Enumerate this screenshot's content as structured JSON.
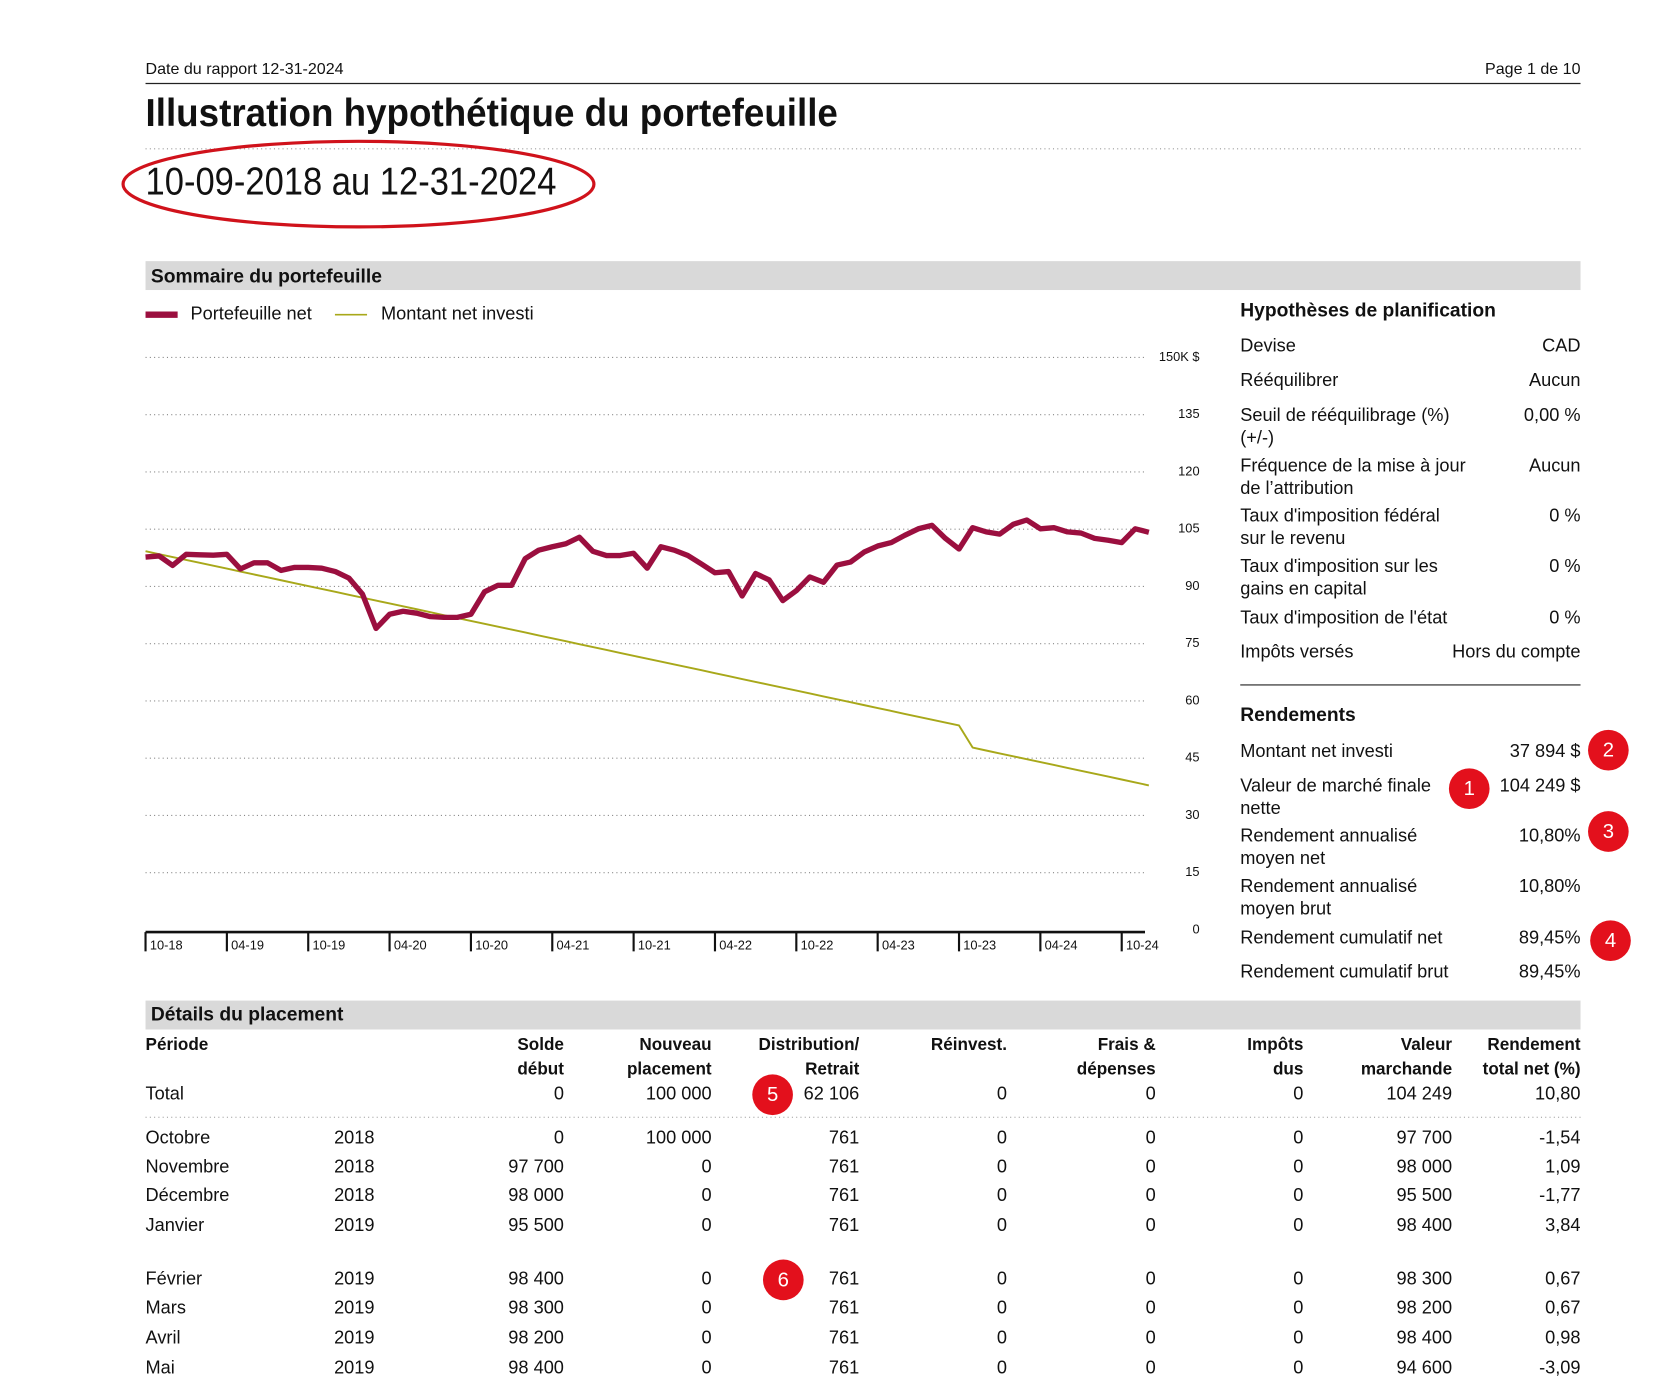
{
  "header": {
    "report_date": "Date du rapport 12-31-2024",
    "page": "Page 1 de 10",
    "title": "Illustration hypothétique du portefeuille",
    "period": "10-09-2018 au 12-31-2024"
  },
  "summary_title": "Sommaire du portefeuille",
  "chart_data": {
    "type": "line",
    "categories": [
      "10-18",
      null,
      null,
      null,
      null,
      null,
      "04-19",
      null,
      null,
      null,
      null,
      null,
      "10-19",
      null,
      null,
      null,
      null,
      null,
      "04-20",
      null,
      null,
      null,
      null,
      null,
      "10-20",
      null,
      null,
      null,
      null,
      null,
      "04-21",
      null,
      null,
      null,
      null,
      null,
      "10-21",
      null,
      null,
      null,
      null,
      null,
      "04-22",
      null,
      null,
      null,
      null,
      null,
      "10-22",
      null,
      null,
      null,
      null,
      null,
      "04-23",
      null,
      null,
      null,
      null,
      null,
      "10-23",
      null,
      null,
      null,
      null,
      null,
      "04-24",
      null,
      null,
      null,
      null,
      null,
      "10-24",
      null,
      null
    ],
    "series": [
      {
        "name": "Portefeuille net",
        "color": "#9b0f3f",
        "values": [
          97.7,
          98.0,
          95.5,
          98.4,
          98.3,
          98.2,
          98.4,
          94.6,
          96.2,
          96.2,
          94.2,
          95.0,
          95.0,
          94.8,
          93.9,
          92.2,
          88.0,
          79.0,
          82.7,
          83.5,
          83.0,
          82.1,
          81.9,
          81.9,
          82.7,
          88.6,
          90.3,
          90.3,
          97.3,
          99.5,
          100.4,
          101.2,
          102.9,
          99.2,
          98.1,
          98.1,
          98.7,
          94.8,
          100.4,
          99.5,
          98.1,
          95.9,
          93.6,
          93.9,
          87.5,
          93.4,
          91.7,
          86.3,
          88.9,
          92.5,
          91.1,
          95.6,
          96.4,
          99.0,
          100.6,
          101.5,
          103.4,
          105.1,
          106.0,
          102.6,
          99.8,
          105.4,
          104.3,
          103.7,
          106.3,
          107.4,
          105.1,
          105.4,
          104.3,
          104.0,
          102.6,
          102.1,
          101.5,
          105.1,
          104.2
        ]
      },
      {
        "name": "Montant net investi",
        "color": "#a8a81a",
        "values": [
          99.24,
          98.48,
          97.72,
          96.96,
          96.2,
          95.43,
          94.67,
          93.91,
          93.15,
          92.39,
          91.63,
          90.87,
          90.11,
          89.35,
          88.59,
          87.82,
          87.06,
          86.3,
          85.54,
          84.78,
          84.02,
          83.26,
          82.5,
          81.74,
          80.98,
          80.21,
          79.45,
          78.69,
          77.93,
          77.17,
          76.41,
          75.65,
          74.89,
          74.13,
          73.37,
          72.6,
          71.84,
          71.08,
          70.32,
          69.56,
          68.8,
          68.04,
          67.28,
          66.52,
          65.76,
          64.99,
          64.23,
          63.47,
          62.71,
          61.95,
          61.19,
          60.43,
          59.67,
          58.91,
          58.15,
          57.38,
          56.62,
          55.86,
          55.1,
          54.34,
          53.58,
          47.79,
          47.03,
          46.27,
          45.51,
          44.75,
          43.99,
          43.22,
          42.46,
          41.7,
          40.94,
          40.18,
          39.42,
          38.66,
          37.89
        ]
      }
    ],
    "ylim": [
      0,
      150
    ],
    "yticks": [
      0,
      15,
      30,
      45,
      60,
      75,
      90,
      105,
      120,
      135,
      {
        "value": 150,
        "label": "150K $"
      }
    ],
    "grid": true
  },
  "planning": {
    "title": "Hypothèses de planification",
    "rows": [
      {
        "label": [
          "Devise"
        ],
        "value": "CAD"
      },
      {
        "label": [
          "Rééquilibrer"
        ],
        "value": "Aucun"
      },
      {
        "label": [
          "Seuil de rééquilibrage (%)",
          "(+/-)"
        ],
        "value": "0,00 %"
      },
      {
        "label": [
          "Fréquence de la mise à jour",
          "de l’attribution"
        ],
        "value": "Aucun"
      },
      {
        "label": [
          "Taux d'imposition fédéral",
          "sur le revenu"
        ],
        "value": "0 %"
      },
      {
        "label": [
          "Taux d'imposition sur les",
          "gains en capital"
        ],
        "value": "0 %"
      },
      {
        "label": [
          "Taux d'imposition de l'état"
        ],
        "value": "0 %"
      },
      {
        "label": [
          "Impôts versés"
        ],
        "value": "Hors du compte"
      }
    ]
  },
  "returns": {
    "title": "Rendements",
    "rows": [
      {
        "label": [
          "Montant net investi"
        ],
        "value": "37 894 $"
      },
      {
        "label": [
          "Valeur de marché finale",
          "nette"
        ],
        "value": "104 249 $"
      },
      {
        "label": [
          "Rendement annualisé",
          "moyen net"
        ],
        "value": "10,80%"
      },
      {
        "label": [
          "Rendement annualisé",
          "moyen brut"
        ],
        "value": "10,80%"
      },
      {
        "label": [
          "Rendement cumulatif net"
        ],
        "value": "89,45%"
      },
      {
        "label": [
          "Rendement cumulatif brut"
        ],
        "value": "89,45%"
      }
    ]
  },
  "callouts": [
    "1",
    "2",
    "3",
    "4",
    "5",
    "6"
  ],
  "details": {
    "title": "Détails du placement",
    "columns": [
      [
        "Période"
      ],
      [
        "Solde",
        "début"
      ],
      [
        "Nouveau",
        "placement"
      ],
      [
        "Distribution/",
        "Retrait"
      ],
      [
        "Réinvest."
      ],
      [
        "Frais &",
        "dépenses"
      ],
      [
        "Impôts",
        "dus"
      ],
      [
        "Valeur",
        "marchande"
      ],
      [
        "Rendement",
        "total net (%)"
      ]
    ],
    "total": [
      "Total",
      "0",
      "100 000",
      "62 106",
      "0",
      "0",
      "0",
      "104 249",
      "10,80"
    ],
    "rows": [
      [
        "Octobre",
        "2018",
        "0",
        "100 000",
        "761",
        "0",
        "0",
        "0",
        "97 700",
        "-1,54"
      ],
      [
        "Novembre",
        "2018",
        "97 700",
        "0",
        "761",
        "0",
        "0",
        "0",
        "98 000",
        "1,09"
      ],
      [
        "Décembre",
        "2018",
        "98 000",
        "0",
        "761",
        "0",
        "0",
        "0",
        "95 500",
        "-1,77"
      ],
      [
        "Janvier",
        "2019",
        "95 500",
        "0",
        "761",
        "0",
        "0",
        "0",
        "98 400",
        "3,84"
      ],
      [
        "Février",
        "2019",
        "98 400",
        "0",
        "761",
        "0",
        "0",
        "0",
        "98 300",
        "0,67"
      ],
      [
        "Mars",
        "2019",
        "98 300",
        "0",
        "761",
        "0",
        "0",
        "0",
        "98 200",
        "0,67"
      ],
      [
        "Avril",
        "2019",
        "98 200",
        "0",
        "761",
        "0",
        "0",
        "0",
        "98 400",
        "0,98"
      ],
      [
        "Mai",
        "2019",
        "98 400",
        "0",
        "761",
        "0",
        "0",
        "0",
        "94 600",
        "-3,09"
      ]
    ]
  }
}
